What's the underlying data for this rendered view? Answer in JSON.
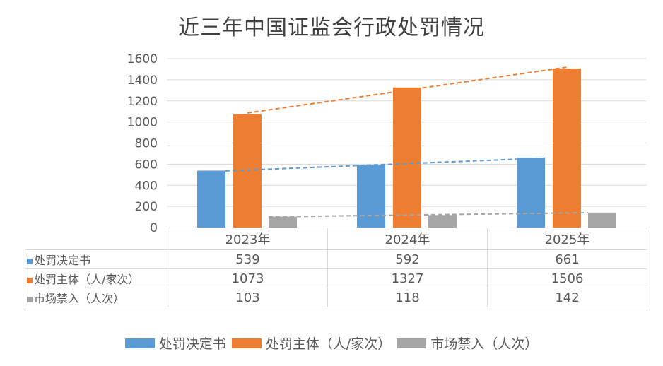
{
  "chart_data": {
    "type": "bar",
    "title": "近三年中国证监会行政处罚情况",
    "categories": [
      "2023年",
      "2024年",
      "2025年"
    ],
    "series": [
      {
        "name": "处罚决定书",
        "values": [
          539,
          592,
          661
        ],
        "color": "#5B9BD5"
      },
      {
        "name": "处罚主体（人/家次）",
        "values": [
          1073,
          1327,
          1506
        ],
        "color": "#ED7D31"
      },
      {
        "name": "市场禁入（人次）",
        "values": [
          103,
          118,
          142
        ],
        "color": "#A5A5A5"
      }
    ],
    "trendlines": "linear, dashed, per series",
    "ylim": [
      0,
      1600
    ],
    "yticks": [
      "0",
      "200",
      "400",
      "600",
      "800",
      "1000",
      "1200",
      "1400",
      "1600"
    ],
    "grid": true,
    "legend": "bottom",
    "data_table": true
  }
}
